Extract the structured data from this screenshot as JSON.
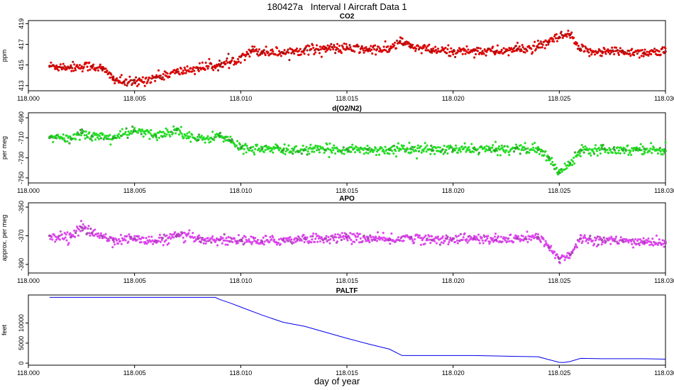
{
  "figure": {
    "title": "180427a   Interval I Aircraft Data 1",
    "xlabel": "day of year"
  },
  "chart_data": [
    {
      "type": "scatter",
      "title": "CO2",
      "ylabel": "ppm",
      "marker_color": "#dd0000",
      "xlim": [
        118.0,
        118.03
      ],
      "ylim": [
        412.5,
        419.3
      ],
      "xticks": [
        118.0,
        118.005,
        118.01,
        118.015,
        118.02,
        118.025,
        118.03
      ],
      "xtick_labels": [
        "118.000",
        "118.005",
        "118.010",
        "118.015",
        "118.020",
        "118.025",
        "118.030"
      ],
      "yticks": [
        413,
        415,
        417,
        419
      ],
      "ytick_labels": [
        "413",
        "415",
        "417",
        "419"
      ],
      "series": [
        {
          "x": [
            118.001,
            118.002,
            118.003,
            118.0035,
            118.004,
            118.0045,
            118.005,
            118.006,
            118.007,
            118.008,
            118.009,
            118.0095,
            118.01,
            118.0105,
            118.011,
            118.012,
            118.013,
            118.014,
            118.015,
            118.016,
            118.017,
            118.0175,
            118.018,
            118.019,
            118.02,
            118.021,
            118.022,
            118.023,
            118.024,
            118.0245,
            118.025,
            118.0255,
            118.026,
            118.027,
            118.028,
            118.029,
            118.03
          ],
          "y": [
            414.9,
            414.8,
            414.9,
            414.6,
            413.7,
            413.3,
            413.3,
            413.8,
            414.3,
            414.7,
            415.0,
            415.2,
            415.8,
            416.4,
            416.3,
            416.2,
            416.5,
            416.6,
            416.6,
            416.5,
            416.5,
            417.3,
            416.8,
            416.4,
            416.3,
            416.4,
            416.3,
            416.5,
            416.7,
            417.2,
            417.7,
            417.9,
            416.4,
            416.3,
            416.3,
            416.2,
            416.3
          ]
        }
      ]
    },
    {
      "type": "scatter",
      "title": "d(O2/N2)",
      "ylabel": "per meg",
      "marker_color": "#22dd22",
      "xlim": [
        118.0,
        118.03
      ],
      "ylim": [
        -755,
        -685
      ],
      "xticks": [
        118.0,
        118.005,
        118.01,
        118.015,
        118.02,
        118.025,
        118.03
      ],
      "xtick_labels": [
        "118.000",
        "118.005",
        "118.010",
        "118.015",
        "118.020",
        "118.025",
        "118.030"
      ],
      "yticks": [
        -690,
        -710,
        -730,
        -750
      ],
      "ytick_labels": [
        "-690",
        "-710",
        "-730",
        "-750"
      ],
      "series": [
        {
          "x": [
            118.001,
            118.002,
            118.0025,
            118.003,
            118.004,
            118.005,
            118.006,
            118.007,
            118.008,
            118.009,
            118.0095,
            118.01,
            118.011,
            118.012,
            118.013,
            118.014,
            118.015,
            118.016,
            118.017,
            118.018,
            118.019,
            118.02,
            118.021,
            118.022,
            118.023,
            118.024,
            118.0245,
            118.025,
            118.0255,
            118.026,
            118.027,
            118.028,
            118.029,
            118.03
          ],
          "y": [
            -710,
            -711,
            -705,
            -708,
            -710,
            -703,
            -708,
            -702,
            -712,
            -708,
            -713,
            -720,
            -721,
            -722,
            -722,
            -722,
            -721,
            -722,
            -722,
            -721,
            -722,
            -722,
            -721,
            -722,
            -720,
            -722,
            -730,
            -745,
            -735,
            -722,
            -721,
            -722,
            -721,
            -723
          ]
        }
      ]
    },
    {
      "type": "scatter",
      "title": "APO",
      "ylabel": "approx. per meg",
      "marker_color": "#dd44ee",
      "xlim": [
        118.0,
        118.03
      ],
      "ylim": [
        -396,
        -347
      ],
      "xticks": [
        118.0,
        118.005,
        118.01,
        118.015,
        118.02,
        118.025,
        118.03
      ],
      "xtick_labels": [
        "118.000",
        "118.005",
        "118.010",
        "118.015",
        "118.020",
        "118.025",
        "118.030"
      ],
      "yticks": [
        -350,
        -370,
        -390
      ],
      "ytick_labels": [
        "-350",
        "-370",
        "-390"
      ],
      "series": [
        {
          "x": [
            118.001,
            118.002,
            118.0025,
            118.003,
            118.004,
            118.005,
            118.006,
            118.007,
            118.008,
            118.009,
            118.01,
            118.011,
            118.012,
            118.013,
            118.014,
            118.015,
            118.016,
            118.017,
            118.018,
            118.019,
            118.02,
            118.021,
            118.022,
            118.023,
            118.024,
            118.0245,
            118.025,
            118.0255,
            118.026,
            118.027,
            118.028,
            118.029,
            118.03
          ],
          "y": [
            -370,
            -371,
            -364,
            -368,
            -373,
            -372,
            -374,
            -370,
            -372,
            -373,
            -373,
            -374,
            -373,
            -372,
            -372,
            -371,
            -372,
            -373,
            -371,
            -373,
            -372,
            -372,
            -373,
            -372,
            -371,
            -378,
            -386,
            -383,
            -372,
            -373,
            -374,
            -374,
            -375
          ]
        }
      ]
    },
    {
      "type": "line",
      "title": "PALTF",
      "ylabel": "feet",
      "line_color": "#0000ee",
      "xlim": [
        118.0,
        118.03
      ],
      "ylim": [
        -500,
        17000
      ],
      "xticks": [
        118.0,
        118.005,
        118.01,
        118.015,
        118.02,
        118.025,
        118.03
      ],
      "xtick_labels": [
        "118.000",
        "118.005",
        "118.010",
        "118.015",
        "118.020",
        "118.025",
        "118.030"
      ],
      "yticks": [
        0,
        5000,
        10000
      ],
      "ytick_labels": [
        "0",
        "5000",
        "10000"
      ],
      "series": [
        {
          "x": [
            118.001,
            118.003,
            118.006,
            118.0088,
            118.009,
            118.0095,
            118.01,
            118.011,
            118.012,
            118.013,
            118.014,
            118.015,
            118.016,
            118.017,
            118.0176,
            118.018,
            118.019,
            118.02,
            118.021,
            118.022,
            118.023,
            118.024,
            118.0245,
            118.025,
            118.0252,
            118.0255,
            118.026,
            118.027,
            118.028,
            118.029,
            118.03
          ],
          "y": [
            16400,
            16400,
            16400,
            16400,
            15900,
            15000,
            14000,
            12000,
            10200,
            9200,
            7700,
            6200,
            4800,
            3500,
            1900,
            1900,
            1900,
            1900,
            1900,
            1800,
            1700,
            1600,
            900,
            200,
            150,
            400,
            1200,
            1100,
            1100,
            1100,
            1000
          ]
        }
      ]
    }
  ]
}
